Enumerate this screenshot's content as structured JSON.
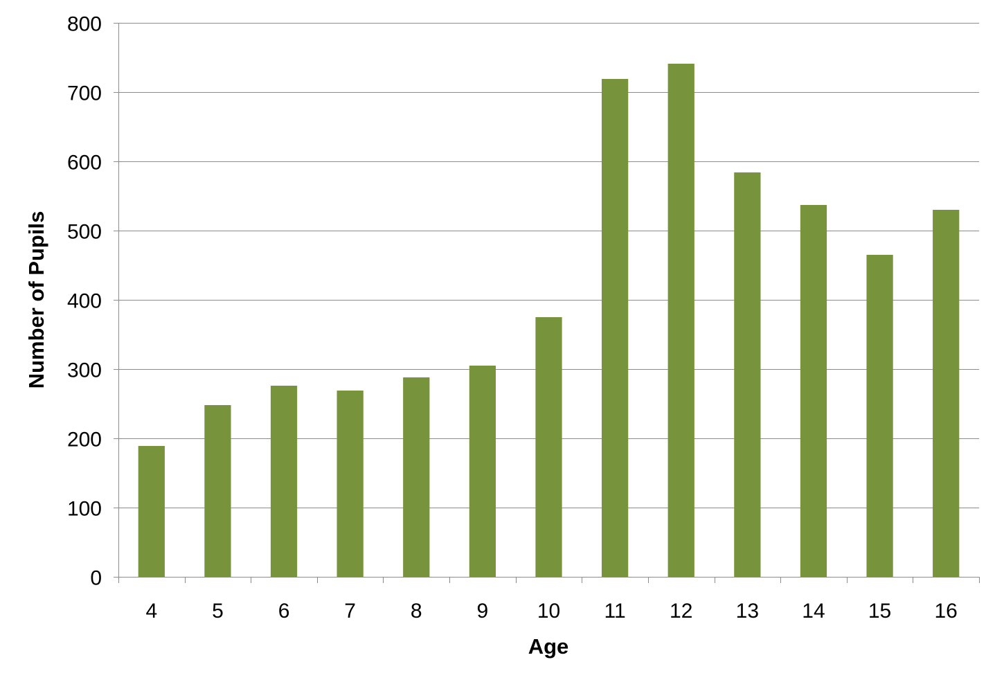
{
  "chart_data": {
    "type": "bar",
    "title": "",
    "xlabel": "Age",
    "ylabel": "Number of Pupils",
    "categories": [
      "4",
      "5",
      "6",
      "7",
      "8",
      "9",
      "10",
      "11",
      "12",
      "13",
      "14",
      "15",
      "16"
    ],
    "values": [
      189,
      248,
      276,
      269,
      288,
      305,
      375,
      719,
      741,
      584,
      537,
      465,
      530
    ],
    "ylim": [
      0,
      800
    ],
    "yticks": [
      "0",
      "100",
      "200",
      "300",
      "400",
      "500",
      "600",
      "700",
      "800"
    ],
    "grid": true,
    "legend": "none",
    "colors": {
      "bar": "#77933c",
      "grid": "#8c8c8c"
    }
  }
}
